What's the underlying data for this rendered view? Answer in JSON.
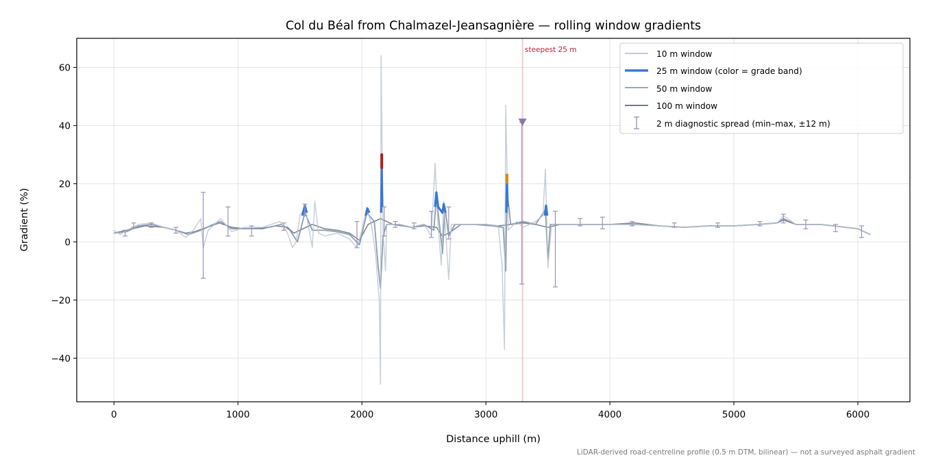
{
  "chart_data": {
    "type": "line",
    "title": "Col du Béal from Chalmazel-Jeansagnière — rolling window gradients",
    "xlabel": "Distance uphill (m)",
    "ylabel": "Gradient (%)",
    "xlim": [
      -300,
      6420
    ],
    "ylim": [
      -55,
      70
    ],
    "x_ticks": [
      0,
      1000,
      2000,
      3000,
      4000,
      5000,
      6000
    ],
    "x_tick_labels": [
      "0",
      "1000",
      "2000",
      "3000",
      "4000",
      "5000",
      "6000"
    ],
    "y_ticks": [
      -40,
      -20,
      0,
      20,
      40,
      60
    ],
    "y_tick_labels": [
      "−40",
      "−20",
      "0",
      "20",
      "40",
      "60"
    ],
    "grid": true,
    "legend_position": "top-right",
    "footnote": "LiDAR-derived road-centreline profile (0.5 m DTM, bilinear) — not a surveyed asphalt gradient",
    "colors": {
      "w10": "#b8c3d0",
      "w25": "#3a78d6",
      "w50": "#8a9bb0",
      "w100": "#5f6777",
      "diag": "#9d91b8",
      "band_steep": "#d98a00",
      "band_extreme": "#b51c1c",
      "annotation": "#c0223b",
      "highlight": "#f4b6bd"
    },
    "series": [
      {
        "name": "100 m window",
        "color": "#5f6777",
        "points": [
          [
            0,
            3
          ],
          [
            150,
            4.5
          ],
          [
            250,
            5.5
          ],
          [
            400,
            5
          ],
          [
            500,
            4
          ],
          [
            580,
            3
          ],
          [
            650,
            3.5
          ],
          [
            750,
            5
          ],
          [
            850,
            6.5
          ],
          [
            950,
            5
          ],
          [
            1050,
            4.5
          ],
          [
            1200,
            4.5
          ],
          [
            1300,
            5.5
          ],
          [
            1400,
            5
          ],
          [
            1450,
            3
          ],
          [
            1500,
            4
          ],
          [
            1600,
            6
          ],
          [
            1700,
            4.5
          ],
          [
            1800,
            4
          ],
          [
            1900,
            3
          ],
          [
            1980,
            0.5
          ],
          [
            2050,
            6
          ],
          [
            2150,
            8
          ],
          [
            2250,
            6
          ],
          [
            2400,
            5
          ],
          [
            2500,
            5.5
          ],
          [
            2600,
            5
          ],
          [
            2650,
            2
          ],
          [
            2700,
            3
          ],
          [
            2800,
            6
          ],
          [
            2900,
            6
          ],
          [
            3000,
            6
          ],
          [
            3100,
            5.5
          ],
          [
            3200,
            6
          ],
          [
            3300,
            6.5
          ],
          [
            3400,
            6
          ],
          [
            3500,
            5
          ],
          [
            3600,
            6
          ],
          [
            3800,
            6
          ],
          [
            4000,
            6
          ],
          [
            4200,
            6.5
          ],
          [
            4400,
            5.5
          ],
          [
            4600,
            5
          ],
          [
            4800,
            5.5
          ],
          [
            5000,
            5.5
          ],
          [
            5200,
            6
          ],
          [
            5350,
            6.5
          ],
          [
            5400,
            7.5
          ],
          [
            5500,
            6
          ],
          [
            5700,
            6
          ],
          [
            5900,
            5
          ],
          [
            6000,
            4.5
          ],
          [
            6100,
            2.5
          ]
        ]
      },
      {
        "name": "50 m window",
        "color": "#8a9bb0",
        "points": [
          [
            0,
            3
          ],
          [
            100,
            3.5
          ],
          [
            200,
            5.5
          ],
          [
            300,
            6
          ],
          [
            400,
            5
          ],
          [
            500,
            4
          ],
          [
            600,
            2.5
          ],
          [
            700,
            4
          ],
          [
            800,
            6
          ],
          [
            860,
            7
          ],
          [
            950,
            4.5
          ],
          [
            1100,
            4.5
          ],
          [
            1250,
            5
          ],
          [
            1350,
            6
          ],
          [
            1420,
            4
          ],
          [
            1480,
            0
          ],
          [
            1540,
            10
          ],
          [
            1600,
            4
          ],
          [
            1700,
            4
          ],
          [
            1800,
            3.5
          ],
          [
            1900,
            2.5
          ],
          [
            1980,
            -1
          ],
          [
            2040,
            10
          ],
          [
            2100,
            7
          ],
          [
            2130,
            -8
          ],
          [
            2150,
            -16
          ],
          [
            2170,
            2
          ],
          [
            2200,
            6
          ],
          [
            2300,
            6
          ],
          [
            2400,
            5
          ],
          [
            2500,
            6
          ],
          [
            2580,
            4
          ],
          [
            2600,
            15
          ],
          [
            2620,
            8
          ],
          [
            2650,
            -4
          ],
          [
            2670,
            12
          ],
          [
            2700,
            2
          ],
          [
            2750,
            6
          ],
          [
            2900,
            6
          ],
          [
            3050,
            5.5
          ],
          [
            3140,
            5
          ],
          [
            3160,
            -10
          ],
          [
            3170,
            18
          ],
          [
            3200,
            6
          ],
          [
            3300,
            7
          ],
          [
            3400,
            6
          ],
          [
            3480,
            11
          ],
          [
            3500,
            -6
          ],
          [
            3520,
            6
          ],
          [
            3600,
            6
          ],
          [
            3800,
            6
          ],
          [
            4000,
            6
          ],
          [
            4200,
            6
          ],
          [
            4400,
            5.5
          ],
          [
            4600,
            5
          ],
          [
            4800,
            5.5
          ],
          [
            5000,
            5.5
          ],
          [
            5200,
            6
          ],
          [
            5350,
            6.5
          ],
          [
            5400,
            8
          ],
          [
            5500,
            6
          ],
          [
            5700,
            6
          ],
          [
            5900,
            5
          ],
          [
            6000,
            4.5
          ],
          [
            6100,
            2.5
          ]
        ]
      },
      {
        "name": "10 m window",
        "color": "#b8c3d0",
        "points": [
          [
            0,
            4
          ],
          [
            50,
            2.5
          ],
          [
            100,
            4
          ],
          [
            200,
            6
          ],
          [
            300,
            6.5
          ],
          [
            400,
            5
          ],
          [
            500,
            4
          ],
          [
            580,
            1.5
          ],
          [
            640,
            4
          ],
          [
            700,
            8
          ],
          [
            720,
            -2
          ],
          [
            760,
            4
          ],
          [
            860,
            8
          ],
          [
            950,
            3.5
          ],
          [
            1050,
            5
          ],
          [
            1200,
            5
          ],
          [
            1340,
            7
          ],
          [
            1400,
            3
          ],
          [
            1440,
            -2
          ],
          [
            1470,
            0
          ],
          [
            1500,
            9
          ],
          [
            1540,
            12
          ],
          [
            1570,
            5
          ],
          [
            1600,
            -2
          ],
          [
            1620,
            14
          ],
          [
            1650,
            3
          ],
          [
            1700,
            2
          ],
          [
            1800,
            3
          ],
          [
            1900,
            1
          ],
          [
            1960,
            -2
          ],
          [
            2000,
            4
          ],
          [
            2040,
            12
          ],
          [
            2080,
            5
          ],
          [
            2110,
            -4
          ],
          [
            2140,
            -20
          ],
          [
            2150,
            -49
          ],
          [
            2155,
            64
          ],
          [
            2170,
            4
          ],
          [
            2190,
            -10
          ],
          [
            2200,
            6
          ],
          [
            2300,
            6
          ],
          [
            2400,
            5
          ],
          [
            2500,
            6
          ],
          [
            2560,
            2
          ],
          [
            2590,
            27
          ],
          [
            2610,
            8
          ],
          [
            2640,
            -8
          ],
          [
            2660,
            14
          ],
          [
            2700,
            -13
          ],
          [
            2720,
            6
          ],
          [
            2800,
            6
          ],
          [
            2900,
            6
          ],
          [
            3000,
            6
          ],
          [
            3100,
            5.5
          ],
          [
            3130,
            -8
          ],
          [
            3150,
            -37
          ],
          [
            3160,
            47
          ],
          [
            3180,
            4
          ],
          [
            3250,
            7
          ],
          [
            3300,
            5
          ],
          [
            3400,
            7
          ],
          [
            3460,
            9
          ],
          [
            3480,
            25
          ],
          [
            3500,
            -9
          ],
          [
            3530,
            6
          ],
          [
            3600,
            6
          ],
          [
            3800,
            6
          ],
          [
            4000,
            6
          ],
          [
            4200,
            6
          ],
          [
            4400,
            5.5
          ],
          [
            4600,
            5
          ],
          [
            4800,
            5.5
          ],
          [
            5000,
            5.5
          ],
          [
            5200,
            6
          ],
          [
            5350,
            6.5
          ],
          [
            5400,
            9
          ],
          [
            5500,
            6
          ],
          [
            5700,
            6
          ],
          [
            5900,
            5
          ],
          [
            6000,
            4.5
          ],
          [
            6100,
            2.5
          ]
        ]
      },
      {
        "name": "25 m window (color = grade band)",
        "color": "#3a78d6",
        "points": [
          [
            1520,
            9
          ],
          [
            1540,
            12.5
          ],
          [
            1555,
            10
          ],
          [
            2030,
            9
          ],
          [
            2045,
            11.5
          ],
          [
            2060,
            10
          ],
          [
            2155,
            10
          ],
          [
            2160,
            26
          ],
          [
            2165,
            12
          ],
          [
            2590,
            12
          ],
          [
            2600,
            17
          ],
          [
            2615,
            12
          ],
          [
            2650,
            10
          ],
          [
            2660,
            13
          ],
          [
            2675,
            10
          ],
          [
            3165,
            10
          ],
          [
            3170,
            22
          ],
          [
            3175,
            12
          ],
          [
            3475,
            9
          ],
          [
            3485,
            12.5
          ],
          [
            3495,
            9
          ]
        ]
      }
    ],
    "grade_band_segments": [
      {
        "band": "extreme",
        "color": "#b51c1c",
        "x": 2160,
        "y_from": 25.5,
        "y_to": 30
      },
      {
        "band": "steep",
        "color": "#d98a00",
        "x": 3170,
        "y_from": 20.5,
        "y_to": 23
      }
    ],
    "diagnostic_spread": {
      "name": "2 m diagnostic spread (min–max, ±12 m)",
      "color": "#9d91b8",
      "points": [
        [
          90,
          2,
          4
        ],
        [
          160,
          5,
          6.5
        ],
        [
          300,
          5,
          6.5
        ],
        [
          500,
          3,
          5
        ],
        [
          720,
          -12.5,
          17
        ],
        [
          920,
          2,
          12
        ],
        [
          1110,
          2,
          5.5
        ],
        [
          1370,
          4,
          6.5
        ],
        [
          1540,
          9,
          13
        ],
        [
          1960,
          -2,
          7
        ],
        [
          2180,
          2,
          12
        ],
        [
          2270,
          5,
          7
        ],
        [
          2420,
          4.5,
          6.5
        ],
        [
          2560,
          1.5,
          10.5
        ],
        [
          2700,
          1,
          12
        ],
        [
          3290,
          -14.5,
          41
        ],
        [
          3560,
          -15.5,
          10.5
        ],
        [
          3760,
          5.5,
          8
        ],
        [
          3940,
          4.5,
          8.5
        ],
        [
          4180,
          5.5,
          7
        ],
        [
          4520,
          5,
          6.5
        ],
        [
          4870,
          5,
          6.5
        ],
        [
          5210,
          5.5,
          7
        ],
        [
          5400,
          6.5,
          9.5
        ],
        [
          5580,
          4.5,
          7.5
        ],
        [
          5820,
          3.5,
          6
        ],
        [
          6030,
          1.5,
          5.5
        ]
      ]
    },
    "highlight": {
      "label": "steepest 25 m",
      "x_from": 3290,
      "x_to": 3300,
      "marker_x": 3295,
      "marker_y": 41
    }
  }
}
